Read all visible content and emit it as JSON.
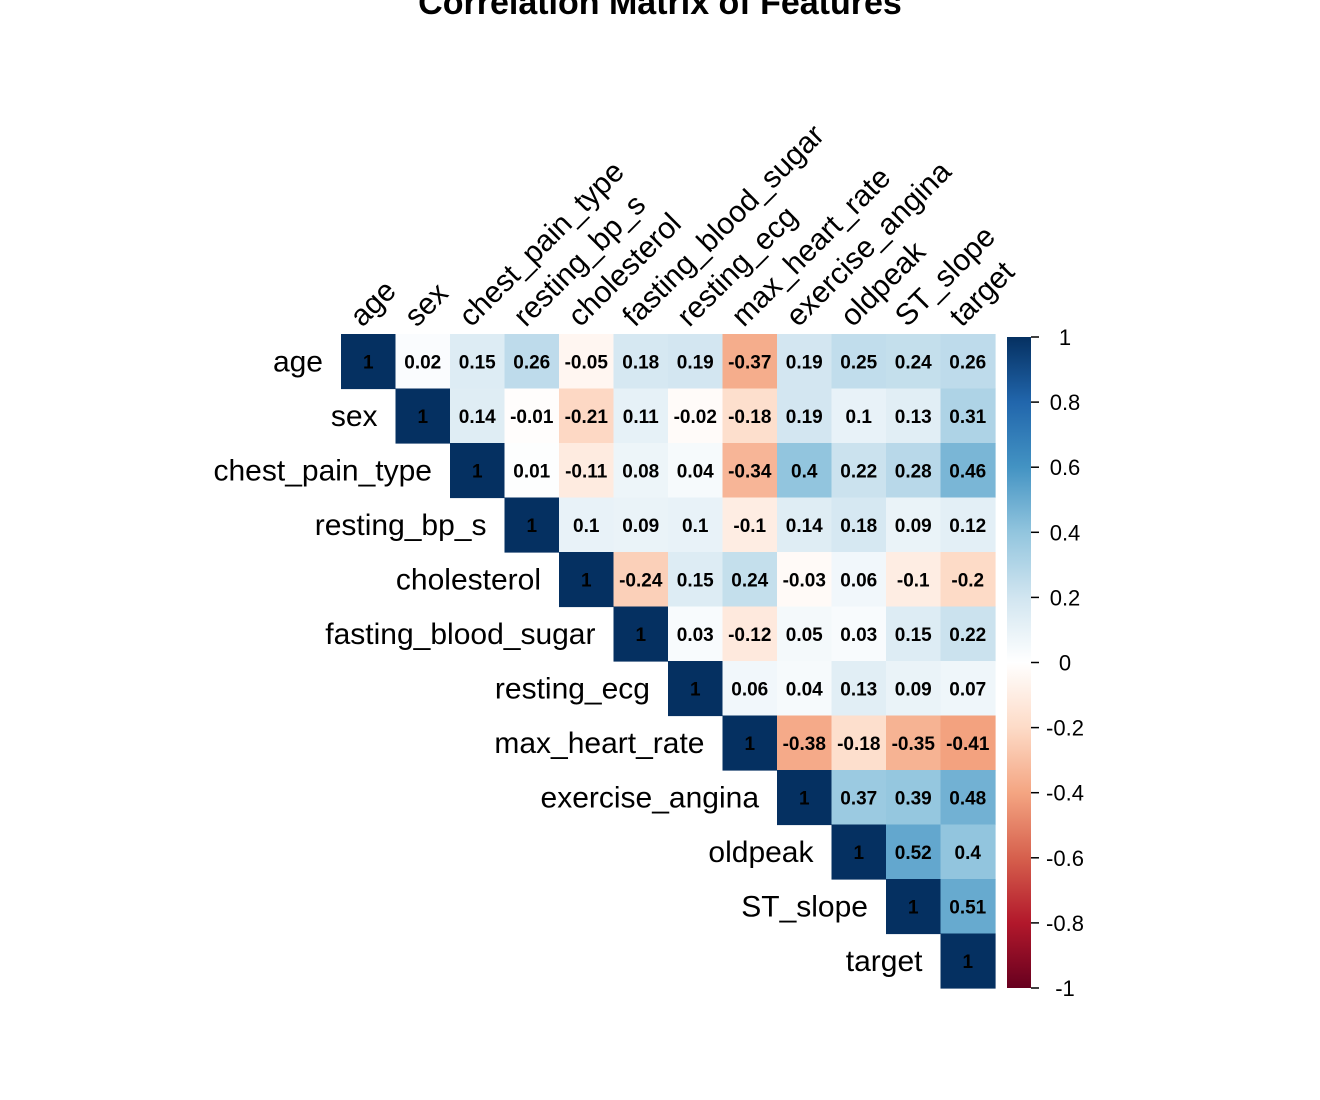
{
  "chart_data": {
    "type": "heatmap",
    "title": "Correlation Matrix of Features",
    "layout": "upper-triangle",
    "variables": [
      "age",
      "sex",
      "chest_pain_type",
      "resting_bp_s",
      "cholesterol",
      "fasting_blood_sugar",
      "resting_ecg",
      "max_heart_rate",
      "exercise_angina",
      "oldpeak",
      "ST_slope",
      "target"
    ],
    "matrix": [
      [
        1,
        0.02,
        0.15,
        0.26,
        -0.05,
        0.18,
        0.19,
        -0.37,
        0.19,
        0.25,
        0.24,
        0.26
      ],
      [
        null,
        1,
        0.14,
        -0.01,
        -0.21,
        0.11,
        -0.02,
        -0.18,
        0.19,
        0.1,
        0.13,
        0.31
      ],
      [
        null,
        null,
        1,
        0.01,
        -0.11,
        0.08,
        0.04,
        -0.34,
        0.4,
        0.22,
        0.28,
        0.46
      ],
      [
        null,
        null,
        null,
        1,
        0.1,
        0.09,
        0.1,
        -0.1,
        0.14,
        0.18,
        0.09,
        0.12
      ],
      [
        null,
        null,
        null,
        null,
        1,
        -0.24,
        0.15,
        0.24,
        -0.03,
        0.06,
        -0.1,
        -0.2
      ],
      [
        null,
        null,
        null,
        null,
        null,
        1,
        0.03,
        -0.12,
        0.05,
        0.03,
        0.15,
        0.22
      ],
      [
        null,
        null,
        null,
        null,
        null,
        null,
        1,
        0.06,
        0.04,
        0.13,
        0.09,
        0.07
      ],
      [
        null,
        null,
        null,
        null,
        null,
        null,
        null,
        1,
        -0.38,
        -0.18,
        -0.35,
        -0.41
      ],
      [
        null,
        null,
        null,
        null,
        null,
        null,
        null,
        null,
        1,
        0.37,
        0.39,
        0.48
      ],
      [
        null,
        null,
        null,
        null,
        null,
        null,
        null,
        null,
        null,
        1,
        0.52,
        0.4
      ],
      [
        null,
        null,
        null,
        null,
        null,
        null,
        null,
        null,
        null,
        null,
        1,
        0.51
      ],
      [
        null,
        null,
        null,
        null,
        null,
        null,
        null,
        null,
        null,
        null,
        null,
        1
      ]
    ],
    "colorbar": {
      "range": [
        -1,
        1
      ],
      "ticks": [
        "1",
        "0.8",
        "0.6",
        "0.4",
        "0.2",
        "0",
        "-0.2",
        "-0.4",
        "-0.6",
        "-0.8",
        "-1"
      ],
      "colormap": [
        "#67001F",
        "#B2182B",
        "#D6604D",
        "#F4A582",
        "#FDDBC7",
        "#FFFFFF",
        "#D1E5F0",
        "#92C5DE",
        "#4393C3",
        "#2166AC",
        "#053061"
      ]
    }
  }
}
